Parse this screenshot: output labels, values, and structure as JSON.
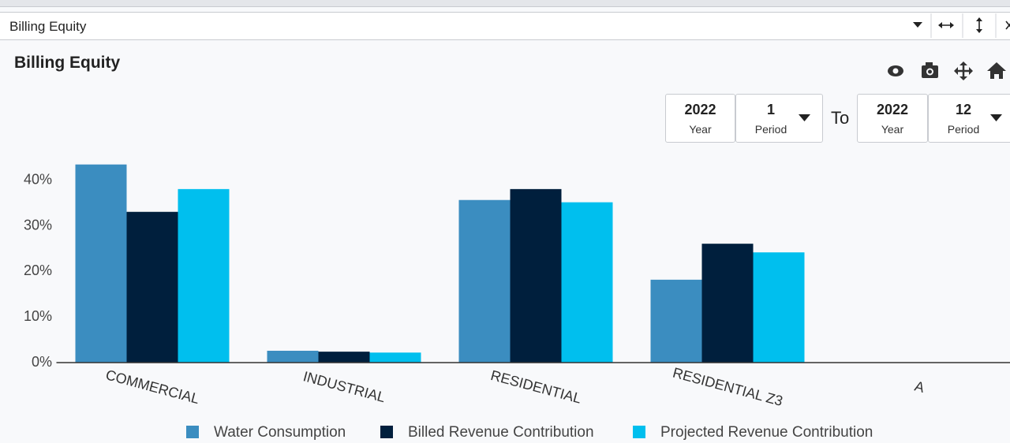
{
  "window": {
    "title": "Billing Equity"
  },
  "panel": {
    "title": "Billing Equity"
  },
  "filters": {
    "from": {
      "year": "2022",
      "year_label": "Year",
      "period": "1",
      "period_label": "Period"
    },
    "to_label": "To",
    "to": {
      "year": "2022",
      "year_label": "Year",
      "period": "12",
      "period_label": "Period"
    }
  },
  "chart_data": {
    "type": "bar",
    "categories": [
      "COMMERCIAL",
      "INDUSTRIAL",
      "RESIDENTIAL",
      "RESIDENTIAL Z3",
      "A"
    ],
    "series": [
      {
        "name": "Water Consumption",
        "color": "#3b8dc0",
        "values": [
          43.5,
          2.6,
          35.7,
          18.2,
          0
        ]
      },
      {
        "name": "Billed Revenue Contribution",
        "color": "#001f3d",
        "values": [
          33.1,
          2.4,
          38.1,
          26.1,
          0
        ]
      },
      {
        "name": "Projected Revenue Contribution",
        "color": "#00bfee",
        "values": [
          38.1,
          2.2,
          35.2,
          24.2,
          0
        ]
      }
    ],
    "ylim": [
      0,
      45
    ],
    "yticks": [
      {
        "value": 0,
        "label": "0%"
      },
      {
        "value": 10,
        "label": "10%"
      },
      {
        "value": 20,
        "label": "20%"
      },
      {
        "value": 30,
        "label": "30%"
      },
      {
        "value": 40,
        "label": "40%"
      }
    ],
    "grid": false,
    "legend": "bottom"
  }
}
